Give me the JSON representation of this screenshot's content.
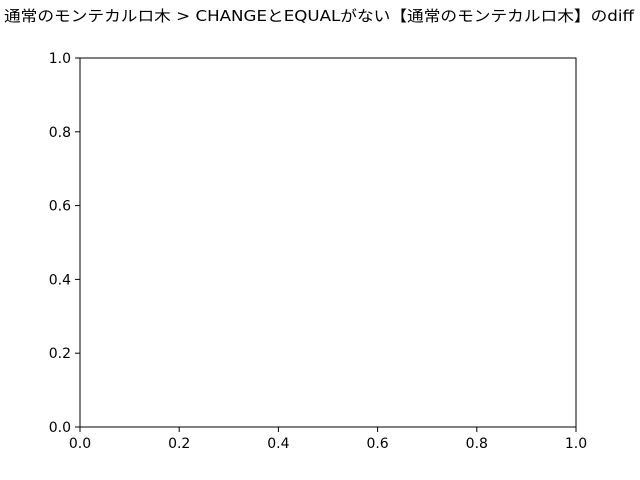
{
  "chart_data": {
    "type": "line",
    "title": "通常のモンテカルロ木 > CHANGEとEQUALがない【通常のモンテカルロ木】のdiff",
    "xlabel": "",
    "ylabel": "",
    "xlim": [
      0.0,
      1.0
    ],
    "ylim": [
      0.0,
      1.0
    ],
    "xticks": [
      "0.0",
      "0.2",
      "0.4",
      "0.6",
      "0.8",
      "1.0"
    ],
    "yticks": [
      "0.0",
      "0.2",
      "0.4",
      "0.6",
      "0.8",
      "1.0"
    ],
    "series": [],
    "grid": false,
    "legend": "none"
  },
  "colors": {
    "axis": "#000000",
    "background": "#ffffff"
  }
}
